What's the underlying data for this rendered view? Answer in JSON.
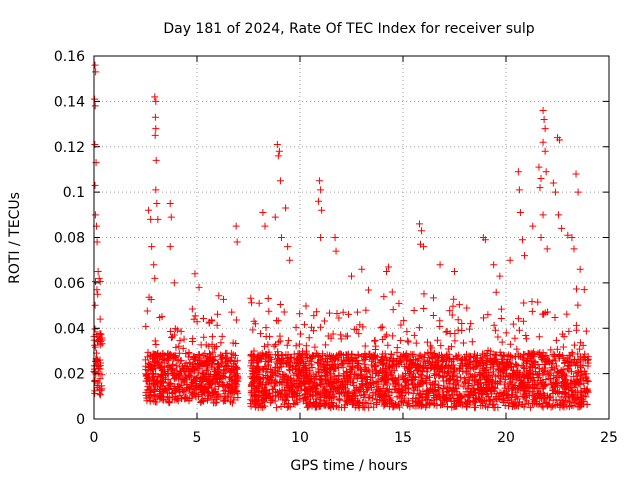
{
  "chart_data": {
    "type": "scatter",
    "title": "Day 181 of 2024, Rate Of TEC Index for receiver sulp",
    "xlabel": "GPS time / hours",
    "ylabel": "ROTI / TECUs",
    "xlim": [
      0,
      25
    ],
    "ylim": [
      0,
      0.16
    ],
    "xticks": [
      0,
      5,
      10,
      15,
      20,
      25
    ],
    "yticks": [
      0,
      0.02,
      0.04,
      0.06,
      0.08,
      0.1,
      0.12,
      0.14,
      0.16
    ],
    "xtick_labels": [
      "0",
      "5",
      "10",
      "15",
      "20",
      "25"
    ],
    "ytick_labels": [
      "0",
      "0.02",
      "0.04",
      "0.06",
      "0.08",
      "0.1",
      "0.12",
      "0.14",
      "0.16"
    ],
    "grid": true,
    "marker": "plus",
    "color": "#ff0000",
    "series": [
      {
        "name": "ROTI",
        "segments": [
          {
            "x_start": 0.0,
            "x_end": 0.4,
            "base": 0.025,
            "spread": 0.03
          },
          {
            "x_start": 2.5,
            "x_end": 7.0,
            "base": 0.018,
            "spread": 0.022
          },
          {
            "x_start": 7.6,
            "x_end": 24.0,
            "base": 0.017,
            "spread": 0.024
          }
        ],
        "highlights": [
          {
            "x": 0.05,
            "y": 0.156
          },
          {
            "x": 0.08,
            "y": 0.153
          },
          {
            "x": 0.03,
            "y": 0.141
          },
          {
            "x": 0.06,
            "y": 0.138
          },
          {
            "x": 0.04,
            "y": 0.121
          },
          {
            "x": 0.1,
            "y": 0.113
          },
          {
            "x": 0.05,
            "y": 0.103
          },
          {
            "x": 0.07,
            "y": 0.09
          },
          {
            "x": 0.12,
            "y": 0.085
          },
          {
            "x": 0.15,
            "y": 0.078
          },
          {
            "x": 0.2,
            "y": 0.065
          },
          {
            "x": 0.25,
            "y": 0.062
          },
          {
            "x": 0.18,
            "y": 0.055
          },
          {
            "x": 0.3,
            "y": 0.044
          },
          {
            "x": 2.65,
            "y": 0.092
          },
          {
            "x": 2.75,
            "y": 0.088
          },
          {
            "x": 2.8,
            "y": 0.076
          },
          {
            "x": 2.9,
            "y": 0.068
          },
          {
            "x": 2.95,
            "y": 0.062
          },
          {
            "x": 2.95,
            "y": 0.142
          },
          {
            "x": 3.0,
            "y": 0.14
          },
          {
            "x": 2.98,
            "y": 0.133
          },
          {
            "x": 3.0,
            "y": 0.128
          },
          {
            "x": 2.97,
            "y": 0.125
          },
          {
            "x": 3.02,
            "y": 0.114
          },
          {
            "x": 3.0,
            "y": 0.101
          },
          {
            "x": 3.05,
            "y": 0.095
          },
          {
            "x": 3.1,
            "y": 0.088
          },
          {
            "x": 3.7,
            "y": 0.095
          },
          {
            "x": 3.75,
            "y": 0.089
          },
          {
            "x": 3.7,
            "y": 0.076
          },
          {
            "x": 3.9,
            "y": 0.06
          },
          {
            "x": 4.9,
            "y": 0.064
          },
          {
            "x": 5.1,
            "y": 0.058
          },
          {
            "x": 6.9,
            "y": 0.085
          },
          {
            "x": 6.95,
            "y": 0.078
          },
          {
            "x": 8.2,
            "y": 0.091
          },
          {
            "x": 8.3,
            "y": 0.085
          },
          {
            "x": 8.8,
            "y": 0.089
          },
          {
            "x": 8.9,
            "y": 0.121
          },
          {
            "x": 9.0,
            "y": 0.118
          },
          {
            "x": 8.95,
            "y": 0.116
          },
          {
            "x": 9.05,
            "y": 0.105
          },
          {
            "x": 9.3,
            "y": 0.093
          },
          {
            "x": 9.1,
            "y": 0.08
          },
          {
            "x": 9.4,
            "y": 0.076
          },
          {
            "x": 9.5,
            "y": 0.07
          },
          {
            "x": 10.95,
            "y": 0.105
          },
          {
            "x": 11.0,
            "y": 0.101
          },
          {
            "x": 10.9,
            "y": 0.096
          },
          {
            "x": 11.05,
            "y": 0.092
          },
          {
            "x": 11.0,
            "y": 0.08
          },
          {
            "x": 11.7,
            "y": 0.08
          },
          {
            "x": 11.75,
            "y": 0.074
          },
          {
            "x": 12.5,
            "y": 0.063
          },
          {
            "x": 13.0,
            "y": 0.066
          },
          {
            "x": 14.2,
            "y": 0.065
          },
          {
            "x": 14.3,
            "y": 0.067
          },
          {
            "x": 15.8,
            "y": 0.086
          },
          {
            "x": 15.9,
            "y": 0.083
          },
          {
            "x": 15.85,
            "y": 0.077
          },
          {
            "x": 16.0,
            "y": 0.076
          },
          {
            "x": 16.8,
            "y": 0.068
          },
          {
            "x": 17.5,
            "y": 0.065
          },
          {
            "x": 18.9,
            "y": 0.08
          },
          {
            "x": 19.0,
            "y": 0.079
          },
          {
            "x": 19.4,
            "y": 0.068
          },
          {
            "x": 19.7,
            "y": 0.063
          },
          {
            "x": 20.2,
            "y": 0.07
          },
          {
            "x": 20.6,
            "y": 0.109
          },
          {
            "x": 20.65,
            "y": 0.101
          },
          {
            "x": 20.7,
            "y": 0.091
          },
          {
            "x": 20.8,
            "y": 0.079
          },
          {
            "x": 20.9,
            "y": 0.072
          },
          {
            "x": 21.3,
            "y": 0.085
          },
          {
            "x": 21.6,
            "y": 0.111
          },
          {
            "x": 21.7,
            "y": 0.106
          },
          {
            "x": 21.65,
            "y": 0.102
          },
          {
            "x": 21.8,
            "y": 0.136
          },
          {
            "x": 21.85,
            "y": 0.132
          },
          {
            "x": 21.9,
            "y": 0.128
          },
          {
            "x": 21.8,
            "y": 0.122
          },
          {
            "x": 21.9,
            "y": 0.118
          },
          {
            "x": 21.95,
            "y": 0.109
          },
          {
            "x": 21.8,
            "y": 0.09
          },
          {
            "x": 21.7,
            "y": 0.08
          },
          {
            "x": 22.0,
            "y": 0.075
          },
          {
            "x": 22.3,
            "y": 0.104
          },
          {
            "x": 22.5,
            "y": 0.124
          },
          {
            "x": 22.6,
            "y": 0.123
          },
          {
            "x": 22.4,
            "y": 0.1
          },
          {
            "x": 22.55,
            "y": 0.09
          },
          {
            "x": 22.7,
            "y": 0.084
          },
          {
            "x": 23.0,
            "y": 0.081
          },
          {
            "x": 23.2,
            "y": 0.08
          },
          {
            "x": 23.4,
            "y": 0.108
          },
          {
            "x": 23.5,
            "y": 0.1
          },
          {
            "x": 23.3,
            "y": 0.075
          },
          {
            "x": 23.6,
            "y": 0.066
          },
          {
            "x": 23.8,
            "y": 0.057
          }
        ]
      }
    ]
  }
}
